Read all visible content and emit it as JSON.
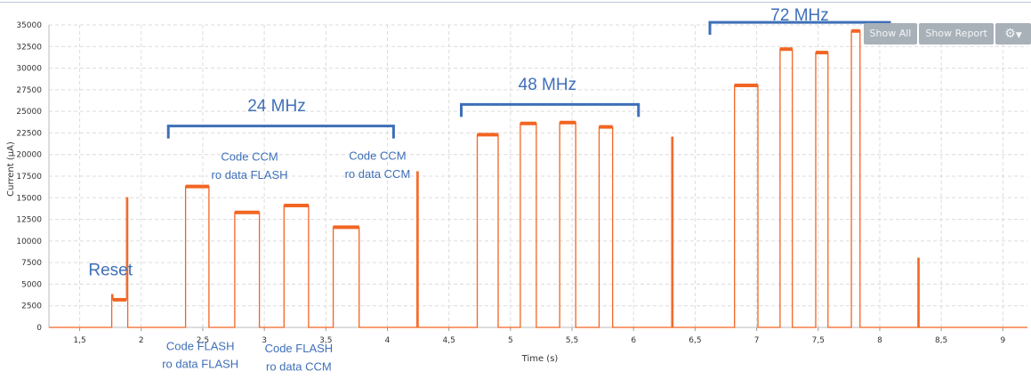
{
  "chart_data": {
    "type": "line",
    "title": "",
    "xlabel": "Time (s)",
    "ylabel": "Current (μA)",
    "xlim": [
      1.25,
      9.2
    ],
    "ylim": [
      0,
      35000
    ],
    "grid": true,
    "x_ticks": [
      1.5,
      2,
      2.5,
      3,
      3.5,
      4,
      4.5,
      5,
      5.5,
      6,
      6.5,
      7,
      7.5,
      8,
      8.5,
      9
    ],
    "x_tick_labels": [
      "1,5",
      "2",
      "2,5",
      "3",
      "3,5",
      "4",
      "4,5",
      "5",
      "5,5",
      "6",
      "6,5",
      "7",
      "7,5",
      "8",
      "8,5",
      "9"
    ],
    "y_ticks": [
      0,
      2500,
      5000,
      7500,
      10000,
      12500,
      15000,
      17500,
      20000,
      22500,
      25000,
      27500,
      30000,
      32500,
      35000
    ],
    "series_color": "#f26522",
    "series": [
      {
        "x": [
          1.25,
          1.76,
          1.76,
          1.77,
          1.77,
          1.88,
          1.88,
          1.89,
          1.89,
          1.9,
          1.9,
          2.36,
          2.36,
          2.55,
          2.55,
          2.76,
          2.76,
          2.96,
          2.96,
          3.16,
          3.16,
          3.36,
          3.36,
          3.56,
          3.56,
          3.77,
          3.77,
          4.24,
          4.24,
          4.25,
          4.25,
          4.73,
          4.73,
          4.9,
          4.9,
          5.08,
          5.08,
          5.21,
          5.21,
          5.4,
          5.4,
          5.53,
          5.53,
          5.72,
          5.72,
          5.83,
          5.83,
          6.31,
          6.31,
          6.32,
          6.32,
          6.82,
          6.82,
          7.01,
          7.01,
          7.19,
          7.19,
          7.29,
          7.29,
          7.48,
          7.48,
          7.58,
          7.58,
          7.77,
          7.77,
          7.84,
          7.84,
          8.31,
          8.31,
          8.32,
          8.32,
          9.2
        ],
        "y": [
          0,
          0,
          3800,
          3800,
          3200,
          3200,
          15000,
          15000,
          0,
          0,
          0,
          0,
          16300,
          16300,
          0,
          0,
          13300,
          13300,
          0,
          0,
          14100,
          14100,
          0,
          0,
          11600,
          11600,
          0,
          0,
          18000,
          18000,
          0,
          0,
          22300,
          22300,
          0,
          0,
          23600,
          23600,
          0,
          0,
          23700,
          23700,
          0,
          0,
          23200,
          23200,
          0,
          0,
          22000,
          22000,
          0,
          0,
          28000,
          28000,
          0,
          0,
          32200,
          32200,
          0,
          0,
          31800,
          31800,
          0,
          0,
          34300,
          34300,
          0,
          0,
          8000,
          8000,
          0,
          0
        ]
      }
    ],
    "annotations": [
      {
        "text": "Reset",
        "x": 1.75,
        "y": 6000,
        "size": 19
      },
      {
        "text": "24 MHz",
        "x": 3.1,
        "y": 25000,
        "size": 19
      },
      {
        "text": "48 MHz",
        "x": 5.3,
        "y": 27500,
        "size": 19
      },
      {
        "text": "72 MHz",
        "x": 7.35,
        "y": 35500,
        "size": 19
      },
      {
        "text": "Code CCM",
        "x": 2.88,
        "y": 19300,
        "size": 13
      },
      {
        "text": "ro data FLASH",
        "x": 2.88,
        "y": 17200,
        "size": 13
      },
      {
        "text": "Code CCM",
        "x": 3.92,
        "y": 19400,
        "size": 13
      },
      {
        "text": "ro data CCM",
        "x": 3.92,
        "y": 17300,
        "size": 13
      },
      {
        "text": "Code FLASH",
        "x": 2.48,
        "y": -2600,
        "size": 13
      },
      {
        "text": "ro data FLASH",
        "x": 2.48,
        "y": -4700,
        "size": 13
      },
      {
        "text": "Code FLASH",
        "x": 3.28,
        "y": -2900,
        "size": 13
      },
      {
        "text": "ro data CCM",
        "x": 3.28,
        "y": -5000,
        "size": 13
      }
    ],
    "brackets": [
      {
        "x1": 2.22,
        "x2": 4.05,
        "y": 23300
      },
      {
        "x1": 4.6,
        "x2": 6.04,
        "y": 25800
      },
      {
        "x1": 6.62,
        "x2": 8.08,
        "y": 35300
      }
    ]
  },
  "toolbar": {
    "show_all": "Show All",
    "show_report": "Show Report",
    "settings_icon": "gear-icon"
  }
}
